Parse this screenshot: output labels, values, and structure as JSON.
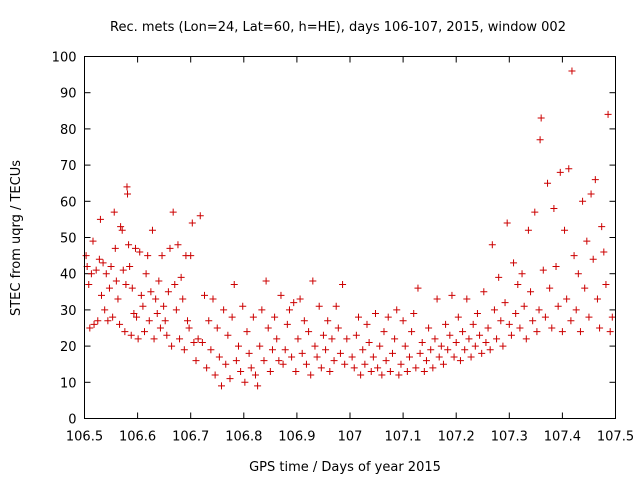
{
  "chart_data": {
    "type": "scatter",
    "title": "Rec. mets (Lon=24, Lat=60, h=HE), days 106-107, 2015, window 002",
    "xlabel": "GPS time / Days of year 2015",
    "ylabel": "STEC from uqrg / TECUs",
    "xlim": [
      106.5,
      107.5
    ],
    "ylim": [
      0,
      100
    ],
    "xticks": [
      106.5,
      106.6,
      106.7,
      106.8,
      106.9,
      107,
      107.1,
      107.2,
      107.3,
      107.4,
      107.5
    ],
    "xtick_labels": [
      "106.5",
      "106.6",
      "106.7",
      "106.8",
      "106.9",
      "107",
      "107.1",
      "107.2",
      "107.3",
      "107.4",
      "107.5"
    ],
    "yticks": [
      0,
      10,
      20,
      30,
      40,
      50,
      60,
      70,
      80,
      90,
      100
    ],
    "ytick_labels": [
      "0",
      "10",
      "20",
      "30",
      "40",
      "50",
      "60",
      "70",
      "80",
      "90",
      "100"
    ],
    "grid": false,
    "marker": "plus",
    "color": "#cc0000",
    "points": [
      [
        106.503,
        45
      ],
      [
        106.505,
        42
      ],
      [
        106.508,
        37
      ],
      [
        106.51,
        25
      ],
      [
        106.513,
        40
      ],
      [
        106.516,
        49
      ],
      [
        106.518,
        26
      ],
      [
        106.522,
        41
      ],
      [
        106.525,
        27
      ],
      [
        106.528,
        44
      ],
      [
        106.53,
        55
      ],
      [
        106.532,
        34
      ],
      [
        106.535,
        43
      ],
      [
        106.538,
        30
      ],
      [
        106.541,
        40
      ],
      [
        106.544,
        27
      ],
      [
        106.547,
        36
      ],
      [
        106.55,
        42
      ],
      [
        106.553,
        28
      ],
      [
        106.556,
        57
      ],
      [
        106.558,
        47
      ],
      [
        106.56,
        38
      ],
      [
        106.563,
        33
      ],
      [
        106.566,
        26
      ],
      [
        106.568,
        53
      ],
      [
        106.571,
        52
      ],
      [
        106.573,
        41
      ],
      [
        106.576,
        24
      ],
      [
        106.578,
        37
      ],
      [
        106.58,
        64
      ],
      [
        106.581,
        62
      ],
      [
        106.583,
        48
      ],
      [
        106.585,
        42
      ],
      [
        106.588,
        23
      ],
      [
        106.59,
        36
      ],
      [
        106.593,
        29
      ],
      [
        106.596,
        47
      ],
      [
        106.598,
        28
      ],
      [
        106.601,
        22
      ],
      [
        106.604,
        46
      ],
      [
        106.607,
        34
      ],
      [
        106.61,
        31
      ],
      [
        106.613,
        24
      ],
      [
        106.616,
        40
      ],
      [
        106.619,
        45
      ],
      [
        106.622,
        27
      ],
      [
        106.625,
        35
      ],
      [
        106.628,
        52
      ],
      [
        106.631,
        22
      ],
      [
        106.634,
        33
      ],
      [
        106.637,
        29
      ],
      [
        106.64,
        38
      ],
      [
        106.643,
        25
      ],
      [
        106.646,
        45
      ],
      [
        106.649,
        31
      ],
      [
        106.652,
        27
      ],
      [
        106.655,
        23
      ],
      [
        106.658,
        35
      ],
      [
        106.661,
        47
      ],
      [
        106.664,
        20
      ],
      [
        106.667,
        57
      ],
      [
        106.67,
        37
      ],
      [
        106.673,
        30
      ],
      [
        106.676,
        48
      ],
      [
        106.679,
        22
      ],
      [
        106.682,
        39
      ],
      [
        106.685,
        33
      ],
      [
        106.688,
        19
      ],
      [
        106.691,
        45
      ],
      [
        106.694,
        27
      ],
      [
        106.697,
        25
      ],
      [
        106.7,
        45
      ],
      [
        106.703,
        54
      ],
      [
        106.706,
        21
      ],
      [
        106.71,
        16
      ],
      [
        106.714,
        22
      ],
      [
        106.718,
        56
      ],
      [
        106.722,
        21
      ],
      [
        106.726,
        34
      ],
      [
        106.73,
        14
      ],
      [
        106.734,
        27
      ],
      [
        106.738,
        19
      ],
      [
        106.742,
        33
      ],
      [
        106.746,
        12
      ],
      [
        106.75,
        25
      ],
      [
        106.754,
        17
      ],
      [
        106.758,
        9
      ],
      [
        106.762,
        30
      ],
      [
        106.766,
        15
      ],
      [
        106.77,
        23
      ],
      [
        106.774,
        11
      ],
      [
        106.778,
        28
      ],
      [
        106.782,
        37
      ],
      [
        106.786,
        16
      ],
      [
        106.79,
        20
      ],
      [
        106.794,
        13
      ],
      [
        106.798,
        31
      ],
      [
        106.802,
        10
      ],
      [
        106.806,
        24
      ],
      [
        106.81,
        18
      ],
      [
        106.814,
        14
      ],
      [
        106.818,
        28
      ],
      [
        106.822,
        12
      ],
      [
        106.826,
        9
      ],
      [
        106.83,
        20
      ],
      [
        106.834,
        30
      ],
      [
        106.838,
        16
      ],
      [
        106.842,
        38
      ],
      [
        106.846,
        25
      ],
      [
        106.85,
        13
      ],
      [
        106.854,
        19
      ],
      [
        106.858,
        28
      ],
      [
        106.862,
        22
      ],
      [
        106.866,
        16
      ],
      [
        106.87,
        34
      ],
      [
        106.874,
        15
      ],
      [
        106.878,
        19
      ],
      [
        106.882,
        26
      ],
      [
        106.886,
        30
      ],
      [
        106.89,
        17
      ],
      [
        106.894,
        32
      ],
      [
        106.898,
        13
      ],
      [
        106.902,
        22
      ],
      [
        106.906,
        33
      ],
      [
        106.91,
        18
      ],
      [
        106.914,
        27
      ],
      [
        106.918,
        15
      ],
      [
        106.922,
        24
      ],
      [
        106.926,
        12
      ],
      [
        106.93,
        38
      ],
      [
        106.934,
        20
      ],
      [
        106.938,
        17
      ],
      [
        106.942,
        31
      ],
      [
        106.946,
        14
      ],
      [
        106.95,
        23
      ],
      [
        106.954,
        19
      ],
      [
        106.958,
        27
      ],
      [
        106.962,
        13
      ],
      [
        106.966,
        22
      ],
      [
        106.97,
        16
      ],
      [
        106.974,
        31
      ],
      [
        106.978,
        25
      ],
      [
        106.982,
        18
      ],
      [
        106.986,
        37
      ],
      [
        106.99,
        15
      ],
      [
        106.994,
        22
      ],
      [
        107.004,
        17
      ],
      [
        107.008,
        14
      ],
      [
        107.012,
        23
      ],
      [
        107.016,
        28
      ],
      [
        107.02,
        12
      ],
      [
        107.024,
        19
      ],
      [
        107.028,
        15
      ],
      [
        107.032,
        26
      ],
      [
        107.036,
        21
      ],
      [
        107.04,
        13
      ],
      [
        107.044,
        17
      ],
      [
        107.048,
        29
      ],
      [
        107.052,
        14
      ],
      [
        107.056,
        20
      ],
      [
        107.06,
        12
      ],
      [
        107.064,
        24
      ],
      [
        107.068,
        16
      ],
      [
        107.072,
        28
      ],
      [
        107.076,
        13
      ],
      [
        107.08,
        18
      ],
      [
        107.084,
        22
      ],
      [
        107.088,
        30
      ],
      [
        107.092,
        12
      ],
      [
        107.096,
        15
      ],
      [
        107.1,
        27
      ],
      [
        107.104,
        20
      ],
      [
        107.108,
        13
      ],
      [
        107.112,
        17
      ],
      [
        107.116,
        24
      ],
      [
        107.12,
        29
      ],
      [
        107.124,
        14
      ],
      [
        107.128,
        36
      ],
      [
        107.132,
        18
      ],
      [
        107.136,
        21
      ],
      [
        107.14,
        13
      ],
      [
        107.144,
        16
      ],
      [
        107.148,
        25
      ],
      [
        107.152,
        19
      ],
      [
        107.156,
        14
      ],
      [
        107.16,
        22
      ],
      [
        107.164,
        33
      ],
      [
        107.168,
        17
      ],
      [
        107.172,
        20
      ],
      [
        107.176,
        15
      ],
      [
        107.18,
        26
      ],
      [
        107.184,
        19
      ],
      [
        107.188,
        23
      ],
      [
        107.192,
        34
      ],
      [
        107.196,
        17
      ],
      [
        107.2,
        21
      ],
      [
        107.204,
        28
      ],
      [
        107.208,
        16
      ],
      [
        107.212,
        24
      ],
      [
        107.216,
        19
      ],
      [
        107.22,
        33
      ],
      [
        107.224,
        22
      ],
      [
        107.228,
        17
      ],
      [
        107.232,
        26
      ],
      [
        107.236,
        20
      ],
      [
        107.24,
        29
      ],
      [
        107.244,
        23
      ],
      [
        107.248,
        18
      ],
      [
        107.252,
        35
      ],
      [
        107.256,
        21
      ],
      [
        107.26,
        25
      ],
      [
        107.264,
        19
      ],
      [
        107.268,
        48
      ],
      [
        107.272,
        30
      ],
      [
        107.276,
        22
      ],
      [
        107.28,
        39
      ],
      [
        107.284,
        27
      ],
      [
        107.288,
        20
      ],
      [
        107.292,
        32
      ],
      [
        107.296,
        54
      ],
      [
        107.3,
        26
      ],
      [
        107.304,
        23
      ],
      [
        107.308,
        43
      ],
      [
        107.312,
        29
      ],
      [
        107.316,
        37
      ],
      [
        107.32,
        25
      ],
      [
        107.324,
        40
      ],
      [
        107.328,
        31
      ],
      [
        107.332,
        22
      ],
      [
        107.336,
        52
      ],
      [
        107.34,
        35
      ],
      [
        107.344,
        27
      ],
      [
        107.348,
        57
      ],
      [
        107.352,
        24
      ],
      [
        107.356,
        30
      ],
      [
        107.358,
        77
      ],
      [
        107.36,
        83
      ],
      [
        107.364,
        41
      ],
      [
        107.368,
        28
      ],
      [
        107.372,
        65
      ],
      [
        107.376,
        36
      ],
      [
        107.38,
        25
      ],
      [
        107.384,
        58
      ],
      [
        107.388,
        42
      ],
      [
        107.392,
        31
      ],
      [
        107.396,
        68
      ],
      [
        107.4,
        24
      ],
      [
        107.404,
        52
      ],
      [
        107.408,
        33
      ],
      [
        107.412,
        69
      ],
      [
        107.416,
        27
      ],
      [
        107.418,
        96
      ],
      [
        107.422,
        45
      ],
      [
        107.426,
        30
      ],
      [
        107.43,
        40
      ],
      [
        107.434,
        24
      ],
      [
        107.438,
        60
      ],
      [
        107.442,
        36
      ],
      [
        107.446,
        49
      ],
      [
        107.45,
        28
      ],
      [
        107.454,
        62
      ],
      [
        107.458,
        44
      ],
      [
        107.462,
        66
      ],
      [
        107.466,
        33
      ],
      [
        107.47,
        25
      ],
      [
        107.474,
        53
      ],
      [
        107.478,
        46
      ],
      [
        107.482,
        37
      ],
      [
        107.486,
        84
      ],
      [
        107.49,
        24
      ],
      [
        107.494,
        28
      ]
    ]
  }
}
